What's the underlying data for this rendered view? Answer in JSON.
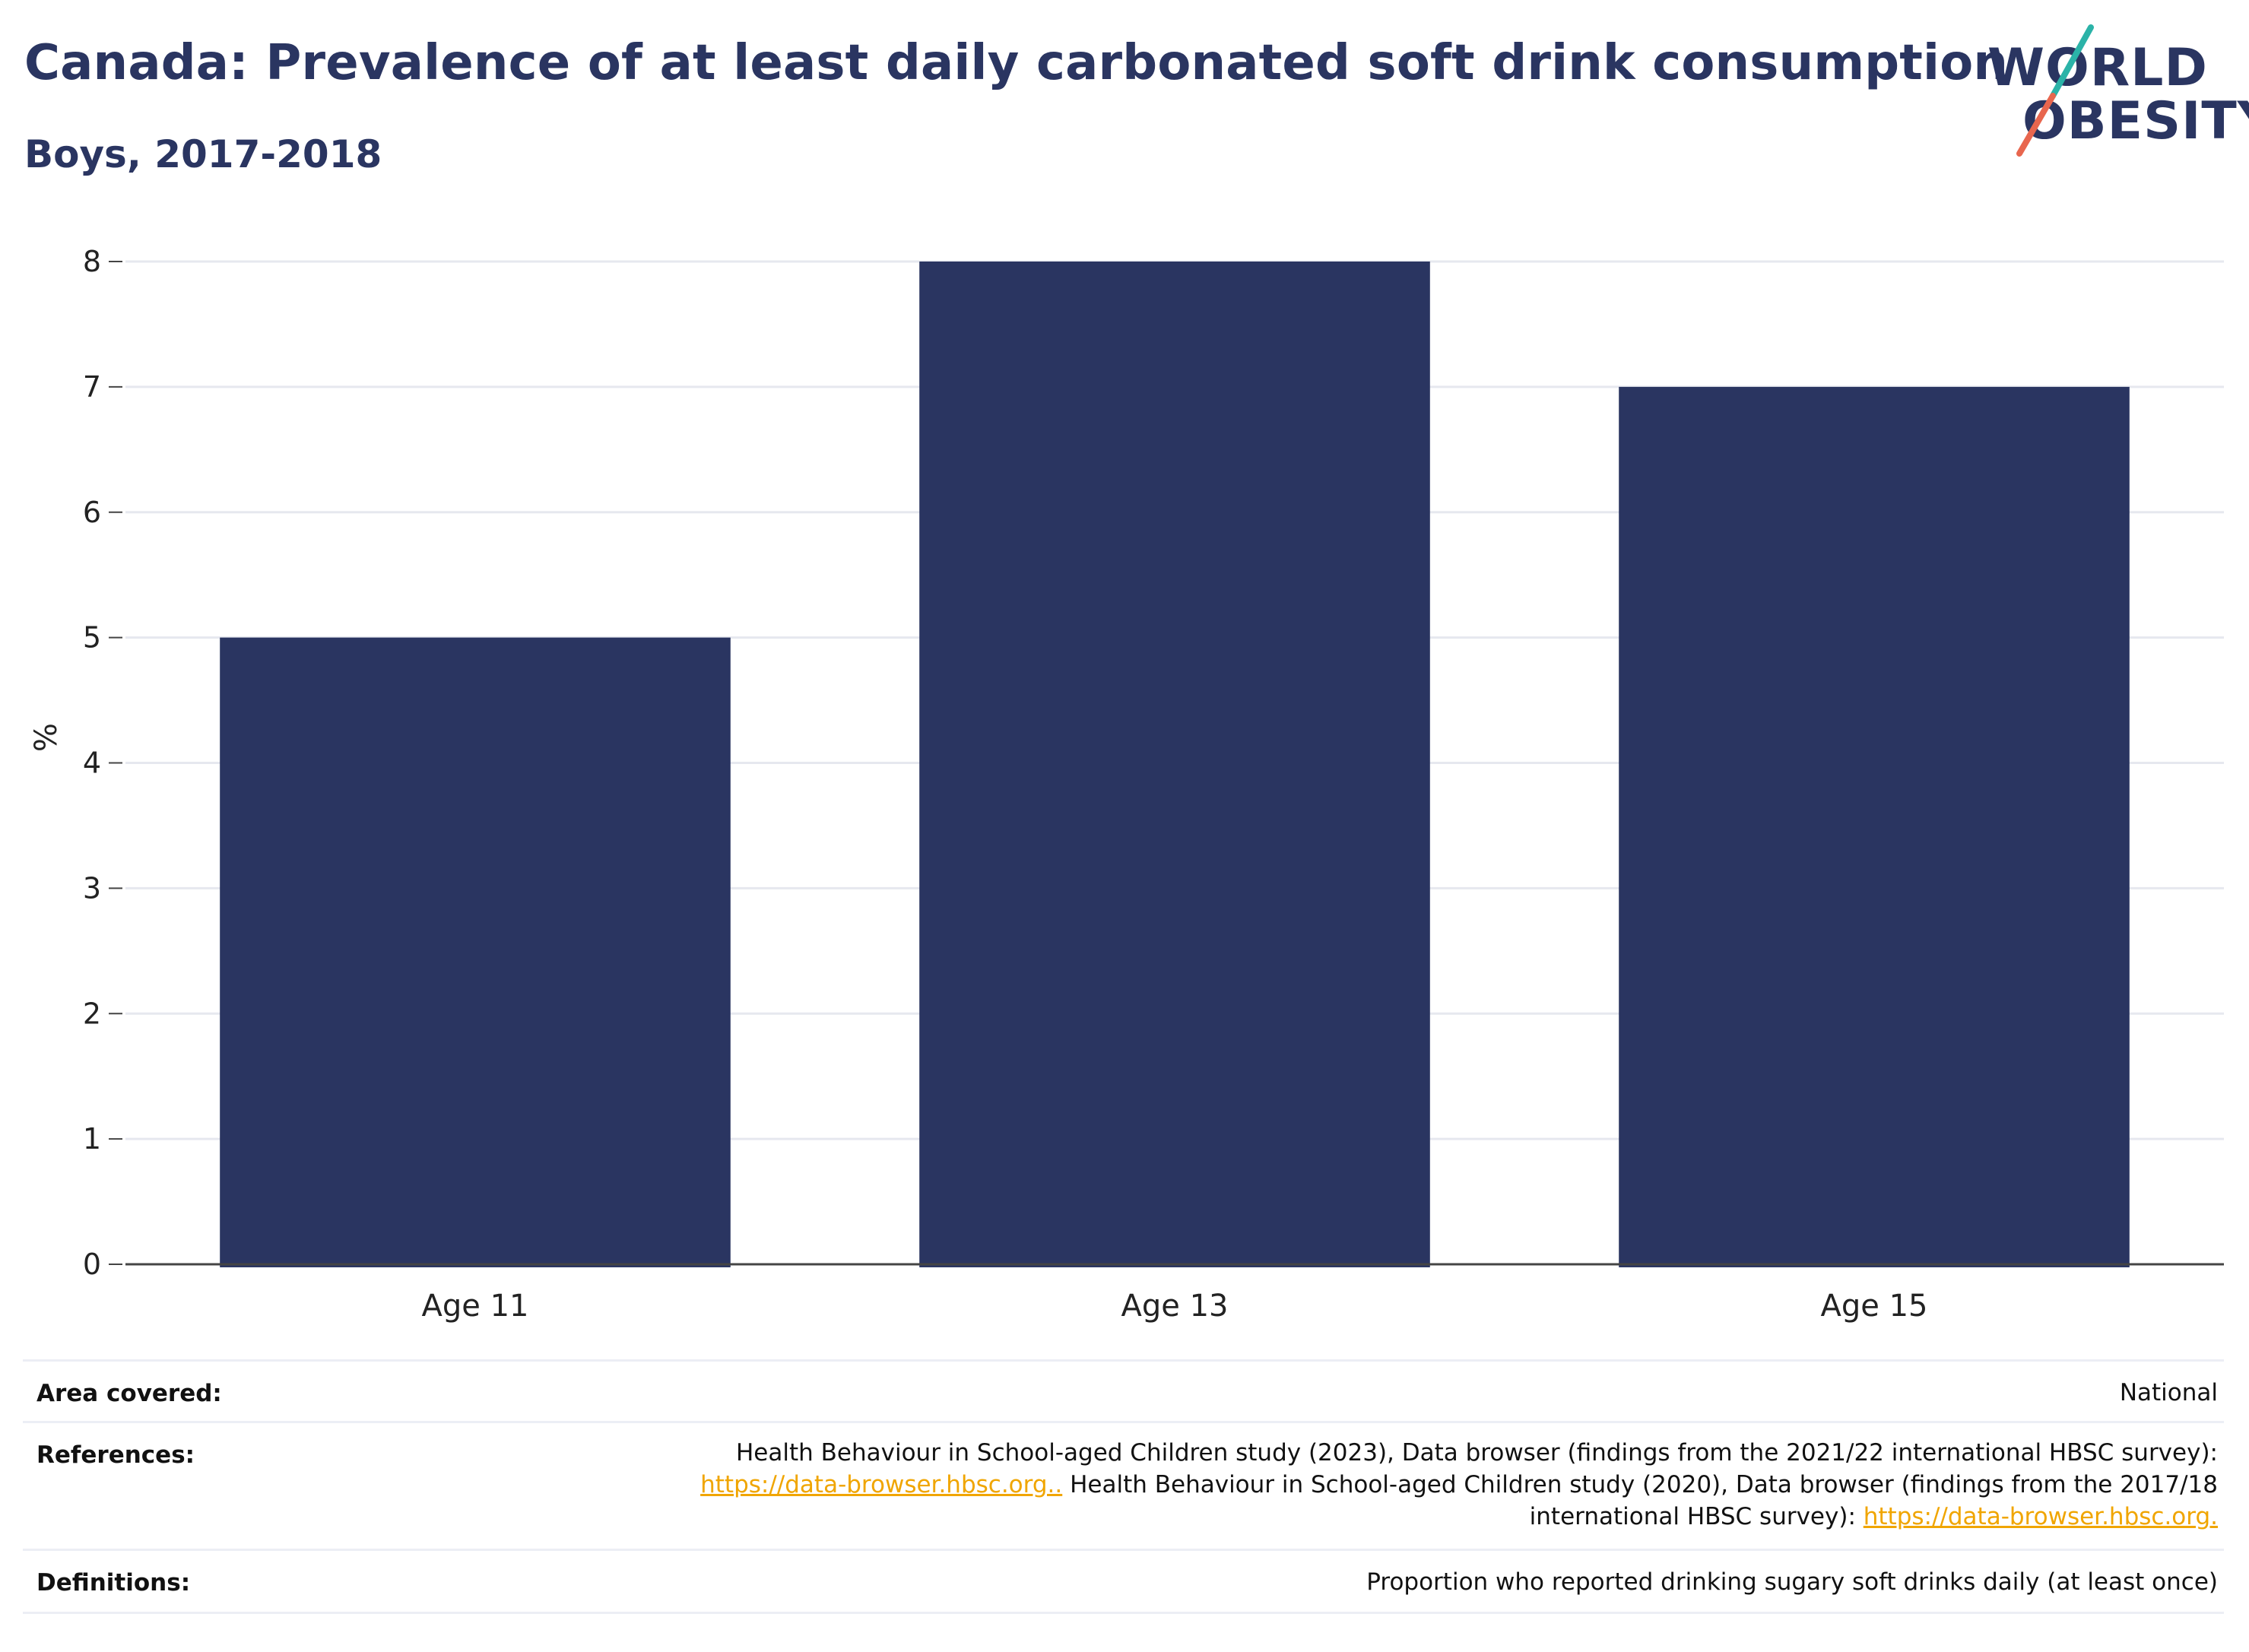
{
  "header": {
    "title": "Canada: Prevalence of at least daily carbonated soft drink consumption",
    "subtitle": "Boys, 2017-2018"
  },
  "logo": {
    "line1": "WORLD",
    "line2": "OBESITY",
    "colors": {
      "text": "#2a3561",
      "slash_top": "#2bb3a8",
      "slash_bottom": "#e8664e"
    }
  },
  "chart_data": {
    "type": "bar",
    "categories": [
      "Age 11",
      "Age 13",
      "Age 15"
    ],
    "values": [
      5,
      8,
      7
    ],
    "ylabel": "%",
    "xlabel": "",
    "ylim": [
      0,
      8
    ],
    "yticks": [
      0,
      1,
      2,
      3,
      4,
      5,
      6,
      7,
      8
    ],
    "grid": true,
    "bar_color": "#2a3561"
  },
  "info": {
    "area": {
      "label": "Area covered:",
      "value": "National"
    },
    "references": {
      "label": "References:",
      "line1": "Health Behaviour in School-aged Children study (2023), Data browser (findings from the 2021/22 international HBSC survey):",
      "link1": "https://data-browser.hbsc.org..",
      "line2_rest": " Health Behaviour in School-aged Children study (2020), Data browser (findings from the 2017/18",
      "line3": "international HBSC survey): ",
      "link2": "https://data-browser.hbsc.org."
    },
    "definitions": {
      "label": "Definitions:",
      "value": "Proportion who reported drinking sugary soft drinks daily (at least once)"
    },
    "link_color": "#f0a500"
  }
}
